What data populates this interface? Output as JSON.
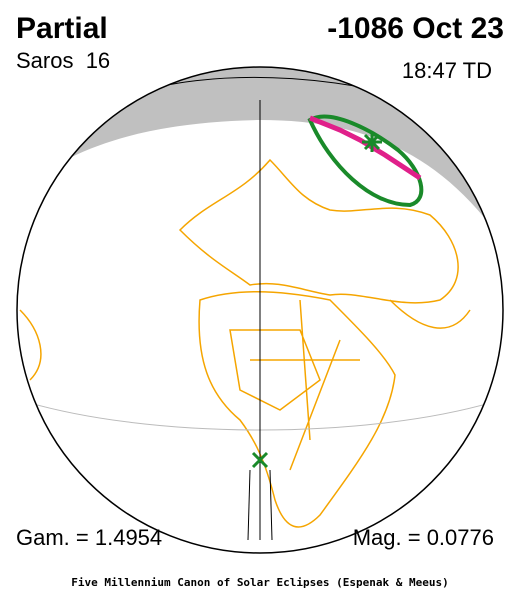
{
  "header": {
    "title": "Partial",
    "date": "-1086 Oct 23",
    "saros": "Saros  16",
    "time": "18:47 TD"
  },
  "footer": {
    "gamma": "Gam. = 1.4954",
    "magnitude": "Mag. = 0.0776",
    "credit": "Five Millennium Canon of Solar Eclipses (Espenak & Meeus)"
  }
}
